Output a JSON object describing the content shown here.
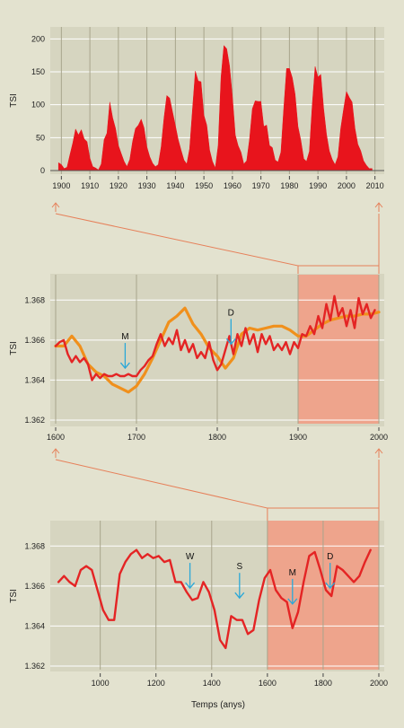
{
  "chart_data": [
    {
      "type": "area",
      "ylabel": "TSI",
      "xlabel": "",
      "xlim": [
        1898,
        2012
      ],
      "ylim": [
        0,
        210
      ],
      "x_ticks": [
        1900,
        1910,
        1920,
        1930,
        1940,
        1950,
        1960,
        1970,
        1980,
        1990,
        2000,
        2010
      ],
      "y_ticks": [
        0,
        50,
        100,
        150,
        200
      ],
      "colors": {
        "fill": "#e8141c"
      },
      "series": [
        {
          "x": [
            1899,
            1900,
            1901,
            1902,
            1903,
            1904,
            1905,
            1906,
            1907,
            1908,
            1909,
            1910,
            1911,
            1912,
            1913,
            1914,
            1915,
            1916,
            1917,
            1918,
            1919,
            1920,
            1921,
            1922,
            1923,
            1924,
            1925,
            1926,
            1927,
            1928,
            1929,
            1930,
            1931,
            1932,
            1933,
            1934,
            1935,
            1936,
            1937,
            1938,
            1939,
            1940,
            1941,
            1942,
            1943,
            1944,
            1945,
            1946,
            1947,
            1948,
            1949,
            1950,
            1951,
            1952,
            1953,
            1954,
            1955,
            1956,
            1957,
            1958,
            1959,
            1960,
            1961,
            1962,
            1963,
            1964,
            1965,
            1966,
            1967,
            1968,
            1969,
            1970,
            1971,
            1972,
            1973,
            1974,
            1975,
            1976,
            1977,
            1978,
            1979,
            1980,
            1981,
            1982,
            1983,
            1984,
            1985,
            1986,
            1987,
            1988,
            1989,
            1990,
            1991,
            1992,
            1993,
            1994,
            1995,
            1996,
            1997,
            1998,
            1999,
            2000,
            2001,
            2002,
            2003,
            2004,
            2005,
            2006,
            2007,
            2008,
            2009
          ],
          "values": [
            12,
            9,
            3,
            5,
            24,
            42,
            63,
            54,
            62,
            48,
            44,
            19,
            6,
            4,
            1,
            10,
            47,
            57,
            104,
            80,
            64,
            38,
            26,
            14,
            6,
            17,
            44,
            64,
            69,
            78,
            65,
            36,
            21,
            11,
            6,
            9,
            36,
            80,
            114,
            110,
            89,
            68,
            47,
            31,
            16,
            10,
            33,
            93,
            151,
            136,
            135,
            84,
            69,
            31,
            14,
            4,
            38,
            142,
            190,
            185,
            159,
            112,
            54,
            38,
            28,
            10,
            15,
            47,
            94,
            106,
            105,
            105,
            67,
            69,
            38,
            35,
            16,
            13,
            28,
            93,
            155,
            155,
            141,
            116,
            67,
            46,
            18,
            14,
            29,
            100,
            158,
            142,
            146,
            94,
            55,
            30,
            17,
            9,
            21,
            64,
            93,
            120,
            111,
            104,
            64,
            40,
            30,
            15,
            8,
            3,
            3
          ]
        }
      ]
    },
    {
      "type": "line",
      "ylabel": "TSI",
      "xlabel": "",
      "xlim": [
        1600,
        2000
      ],
      "ylim": [
        1.362,
        1.369
      ],
      "x_ticks": [
        1600,
        1700,
        1800,
        1900,
        2000
      ],
      "x_tick_labels": [
        "1600",
        "1700",
        "1800",
        "1900",
        "2000"
      ],
      "y_ticks": [
        1.362,
        1.364,
        1.366,
        1.368
      ],
      "y_tick_labels": [
        "1.362",
        "1.364",
        "1.366",
        "1.368"
      ],
      "highlight": {
        "from": 1900,
        "to": 2000,
        "color": "#eea48c"
      },
      "series": [
        {
          "color": "#f0901c",
          "x": [
            1600,
            1610,
            1620,
            1630,
            1640,
            1650,
            1660,
            1670,
            1680,
            1690,
            1700,
            1710,
            1720,
            1730,
            1740,
            1750,
            1760,
            1770,
            1780,
            1790,
            1800,
            1810,
            1820,
            1830,
            1840,
            1850,
            1860,
            1870,
            1880,
            1890,
            1900,
            1910,
            1920,
            1930,
            1940,
            1950,
            1960,
            1970,
            1980,
            1990,
            2000
          ],
          "values": [
            1.3657,
            1.3657,
            1.3662,
            1.3657,
            1.3648,
            1.3644,
            1.3642,
            1.3638,
            1.3636,
            1.3634,
            1.3637,
            1.3643,
            1.3651,
            1.366,
            1.3669,
            1.3672,
            1.3676,
            1.3668,
            1.3663,
            1.3656,
            1.3652,
            1.3646,
            1.3651,
            1.3663,
            1.3666,
            1.3665,
            1.3666,
            1.3667,
            1.3667,
            1.3665,
            1.3662,
            1.3662,
            1.3665,
            1.3668,
            1.367,
            1.3671,
            1.3672,
            1.3672,
            1.3673,
            1.3673,
            1.3674
          ]
        },
        {
          "color": "#e42424",
          "x": [
            1600,
            1605,
            1610,
            1615,
            1620,
            1625,
            1630,
            1635,
            1640,
            1645,
            1650,
            1655,
            1660,
            1665,
            1670,
            1675,
            1680,
            1685,
            1690,
            1695,
            1700,
            1705,
            1710,
            1715,
            1720,
            1725,
            1730,
            1735,
            1740,
            1745,
            1750,
            1755,
            1760,
            1765,
            1770,
            1775,
            1780,
            1785,
            1790,
            1795,
            1800,
            1805,
            1810,
            1815,
            1820,
            1825,
            1830,
            1835,
            1840,
            1845,
            1850,
            1855,
            1860,
            1865,
            1870,
            1875,
            1880,
            1885,
            1890,
            1895,
            1900,
            1905,
            1910,
            1915,
            1920,
            1925,
            1930,
            1935,
            1940,
            1945,
            1950,
            1955,
            1960,
            1965,
            1970,
            1975,
            1980,
            1985,
            1990,
            1995
          ],
          "values": [
            1.3657,
            1.3659,
            1.366,
            1.3653,
            1.3649,
            1.3652,
            1.3649,
            1.3651,
            1.3648,
            1.364,
            1.3643,
            1.3641,
            1.3643,
            1.3642,
            1.3642,
            1.3643,
            1.3642,
            1.3642,
            1.3643,
            1.3642,
            1.3642,
            1.3645,
            1.3647,
            1.365,
            1.3652,
            1.3658,
            1.3663,
            1.3657,
            1.3661,
            1.3658,
            1.3665,
            1.3655,
            1.366,
            1.3654,
            1.3658,
            1.3651,
            1.3654,
            1.3651,
            1.3659,
            1.365,
            1.3645,
            1.3648,
            1.3655,
            1.3662,
            1.3653,
            1.3663,
            1.3657,
            1.3666,
            1.3658,
            1.3663,
            1.3654,
            1.3663,
            1.3658,
            1.3662,
            1.3655,
            1.3658,
            1.3655,
            1.3659,
            1.3653,
            1.3659,
            1.3656,
            1.3663,
            1.3662,
            1.3667,
            1.3663,
            1.3672,
            1.3666,
            1.3678,
            1.367,
            1.3682,
            1.3672,
            1.3676,
            1.3667,
            1.3675,
            1.3666,
            1.3681,
            1.3673,
            1.3678,
            1.3671,
            1.3675
          ]
        }
      ],
      "annotations": [
        {
          "label": "M",
          "x": 1686,
          "y": 1.3646
        },
        {
          "label": "D",
          "x": 1817,
          "y": 1.3658
        }
      ]
    },
    {
      "type": "line",
      "ylabel": "TSI",
      "xlabel": "Temps (anys)",
      "xlim": [
        840,
        2000
      ],
      "ylim": [
        1.362,
        1.369
      ],
      "x_ticks": [
        1000,
        1200,
        1400,
        1600,
        1800,
        2000
      ],
      "x_tick_labels": [
        "1000",
        "1200",
        "1400",
        "1600",
        "1800",
        "2000"
      ],
      "y_ticks": [
        1.362,
        1.364,
        1.366,
        1.368
      ],
      "y_tick_labels": [
        "1.362",
        "1.364",
        "1.366",
        "1.368"
      ],
      "highlight": {
        "from": 1600,
        "to": 2000,
        "color": "#eea48c"
      },
      "series": [
        {
          "color": "#e42424",
          "x": [
            850,
            870,
            890,
            910,
            930,
            950,
            970,
            990,
            1010,
            1030,
            1050,
            1070,
            1090,
            1110,
            1130,
            1150,
            1170,
            1190,
            1210,
            1230,
            1250,
            1270,
            1290,
            1310,
            1330,
            1350,
            1370,
            1390,
            1410,
            1430,
            1450,
            1470,
            1490,
            1510,
            1530,
            1550,
            1570,
            1590,
            1610,
            1630,
            1650,
            1670,
            1690,
            1710,
            1730,
            1750,
            1770,
            1790,
            1810,
            1830,
            1850,
            1870,
            1890,
            1910,
            1930,
            1950,
            1970
          ],
          "values": [
            1.3662,
            1.3665,
            1.3662,
            1.366,
            1.3668,
            1.367,
            1.3668,
            1.3658,
            1.3648,
            1.3643,
            1.3643,
            1.3666,
            1.3672,
            1.3676,
            1.3678,
            1.3674,
            1.3676,
            1.3674,
            1.3675,
            1.3672,
            1.3673,
            1.3662,
            1.3662,
            1.3657,
            1.3653,
            1.3654,
            1.3662,
            1.3657,
            1.3648,
            1.3633,
            1.3629,
            1.3645,
            1.3643,
            1.3643,
            1.3636,
            1.3638,
            1.3653,
            1.3664,
            1.3668,
            1.3658,
            1.3654,
            1.3652,
            1.3639,
            1.3647,
            1.3662,
            1.3675,
            1.3677,
            1.3668,
            1.3658,
            1.3655,
            1.367,
            1.3668,
            1.3665,
            1.3662,
            1.3665,
            1.3672,
            1.3678
          ]
        }
      ],
      "annotations": [
        {
          "label": "W",
          "x": 1322,
          "y": 1.3659
        },
        {
          "label": "S",
          "x": 1500,
          "y": 1.3654
        },
        {
          "label": "M",
          "x": 1690,
          "y": 1.3651
        },
        {
          "label": "D",
          "x": 1825,
          "y": 1.3659
        }
      ]
    }
  ]
}
